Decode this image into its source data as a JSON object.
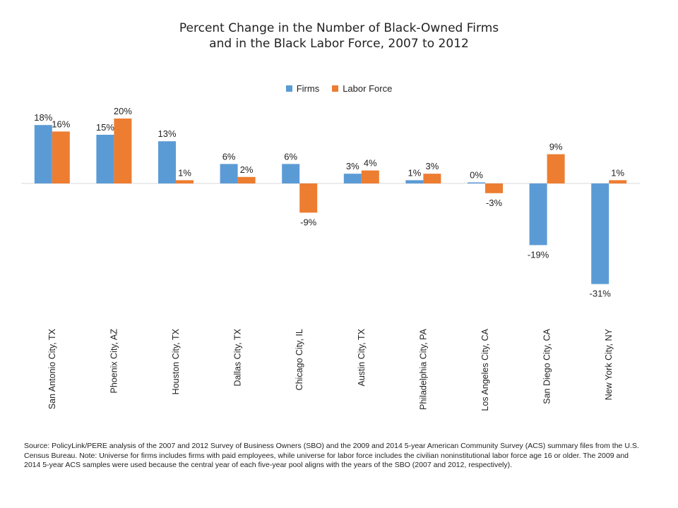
{
  "colors": {
    "firms": "#5b9bd5",
    "labor": "#ed7d31",
    "axis": "#d9d9d9"
  },
  "chart_data": {
    "type": "bar",
    "title_line1": "Percent Change in the Number of Black-Owned Firms",
    "title_line2": "and in the Black Labor Force, 2007 to 2012",
    "legend_position": "top-center",
    "grid": false,
    "ylim": [
      -35,
      22
    ],
    "categories": [
      "San Antonio City, TX",
      "Phoenix City, AZ",
      "Houston City, TX",
      "Dallas City, TX",
      "Chicago City, IL",
      "Austin City, TX",
      "Philadelphia City, PA",
      "Los Angeles City, CA",
      "San Diego City, CA",
      "New York City, NY"
    ],
    "series": [
      {
        "name": "Firms",
        "values": [
          18,
          15,
          13,
          6,
          6,
          3,
          1,
          0,
          -19,
          -31
        ],
        "labels": [
          "18%",
          "15%",
          "13%",
          "6%",
          "6%",
          "3%",
          "1%",
          "0%",
          "-19%",
          "-31%"
        ]
      },
      {
        "name": "Labor Force",
        "values": [
          16,
          20,
          1,
          2,
          -9,
          4,
          3,
          -3,
          9,
          1
        ],
        "labels": [
          "16%",
          "20%",
          "1%",
          "2%",
          "-9%",
          "4%",
          "3%",
          "-3%",
          "9%",
          "1%"
        ]
      }
    ]
  },
  "source_text": "Source: PolicyLink/PERE analysis of the 2007 and 2012 Survey of Business Owners (SBO) and the 2009 and 2014 5-year American Community Survey (ACS) summary files from the U.S. Census Bureau. Note: Universe for firms includes firms with paid employees, while universe for labor force includes the civilian noninstitutional labor force age 16 or older. The 2009 and 2014 5-year ACS samples were used because the central year of each five-year pool aligns with the years of the SBO (2007 and 2012, respectively)."
}
